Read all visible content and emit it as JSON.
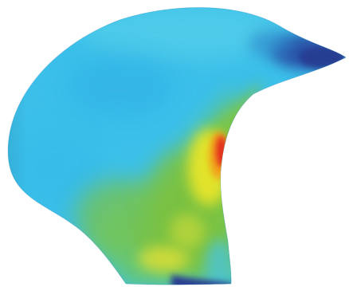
{
  "figure": {
    "subject": "stress-contour-surface",
    "colormap": [
      "#2b3c93",
      "#2f8fcf",
      "#37bde8",
      "#5ec98a",
      "#7bc242",
      "#e8e72a",
      "#f4a21e",
      "#e32a1c"
    ]
  }
}
